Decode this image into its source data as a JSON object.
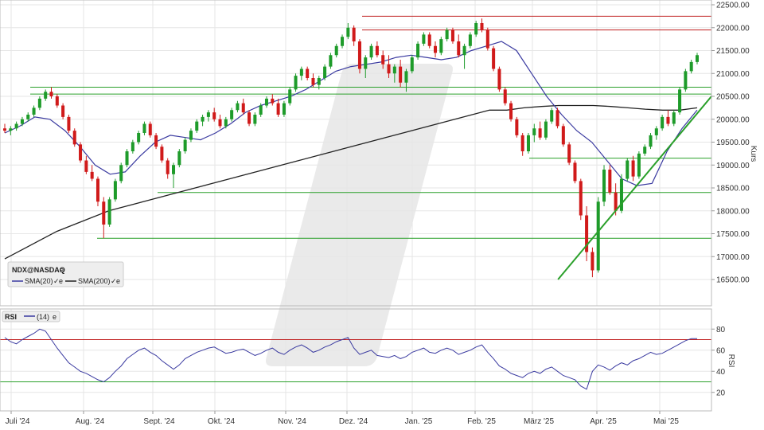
{
  "colors": {
    "up": "#1e9b2a",
    "down": "#d01a1a",
    "sma20": "#3a3aa0",
    "sma200": "#222222",
    "support": "#2aa02a",
    "resistance": "#c02020",
    "rsi": "#3a3aa0",
    "grid": "#e6e6e6",
    "watermark": "#d9d9d9"
  },
  "chart_data": [
    {
      "type": "candlestick",
      "symbol": "NDX@NASDAQ",
      "ylabel": "Kurs",
      "ylim": [
        16250,
        22500
      ],
      "yticks": [
        16500,
        17000,
        17500,
        18000,
        18500,
        19000,
        19500,
        20000,
        20500,
        21000,
        21500,
        22000,
        22500
      ],
      "ytick_labels": [
        "16500.00",
        "17000.00",
        "17500.00",
        "18000.00",
        "18500.00",
        "19000.00",
        "19500.00",
        "20000.00",
        "20500.00",
        "21000.00",
        "21500.00",
        "22000.00",
        "22500.00"
      ],
      "xticks": [
        "Juli '24",
        "Aug. '24",
        "Sept. '24",
        "Okt. '24",
        "Nov. '24",
        "Dez. '24",
        "Jan. '25",
        "Feb. '25",
        "März '25",
        "Apr. '25",
        "Mai '25"
      ],
      "legend": {
        "title": "NDX@NASDAQ",
        "items": [
          {
            "name": "SMA(20)",
            "color": "#3a3aa0"
          },
          {
            "name": "SMA(200)",
            "color": "#222222"
          }
        ]
      },
      "series": [
        {
          "name": "SMA(20)",
          "values": [
            19700,
            19850,
            20050,
            20000,
            19750,
            19400,
            19000,
            18800,
            18850,
            19200,
            19500,
            19650,
            19600,
            19550,
            19700,
            19900,
            20150,
            20300,
            20400,
            20500,
            20650,
            20850,
            21050,
            21150,
            21200,
            21250,
            21350,
            21400,
            21350,
            21300,
            21350,
            21500,
            21600,
            21700,
            21500,
            21000,
            20500,
            20100,
            19750,
            19500,
            19100,
            18700,
            18550,
            18600,
            19300,
            19800,
            20200
          ]
        },
        {
          "name": "SMA(200)",
          "values": [
            16950,
            17150,
            17350,
            17550,
            17700,
            17850,
            18000,
            18100,
            18200,
            18300,
            18400,
            18500,
            18600,
            18700,
            18800,
            18900,
            19000,
            19100,
            19200,
            19300,
            19400,
            19500,
            19600,
            19700,
            19800,
            19900,
            20000,
            20100,
            20200,
            20200,
            20250,
            20280,
            20300,
            20300,
            20300,
            20280,
            20250,
            20220,
            20200,
            20200,
            20250
          ]
        }
      ],
      "levels": [
        {
          "value": 22250,
          "color": "resistance"
        },
        {
          "value": 21950,
          "color": "resistance"
        },
        {
          "value": 20700,
          "color": "support"
        },
        {
          "value": 20550,
          "color": "support"
        },
        {
          "value": 19150,
          "color": "support"
        },
        {
          "value": 18400,
          "color": "support"
        },
        {
          "value": 17400,
          "color": "support"
        }
      ],
      "trendline": {
        "from": [
          0.799,
          16500
        ],
        "to": [
          1.0,
          20500
        ]
      },
      "candles": [
        [
          19800,
          19900,
          19700,
          19750
        ],
        [
          19750,
          19850,
          19650,
          19800
        ],
        [
          19800,
          19950,
          19750,
          19900
        ],
        [
          19900,
          20050,
          19850,
          20000
        ],
        [
          20000,
          20150,
          19950,
          20100
        ],
        [
          20100,
          20300,
          20050,
          20250
        ],
        [
          20250,
          20500,
          20200,
          20450
        ],
        [
          20450,
          20650,
          20400,
          20600
        ],
        [
          20600,
          20700,
          20450,
          20500
        ],
        [
          20500,
          20550,
          20250,
          20300
        ],
        [
          20300,
          20350,
          20000,
          20050
        ],
        [
          20050,
          20100,
          19700,
          19750
        ],
        [
          19750,
          19800,
          19400,
          19450
        ],
        [
          19450,
          19500,
          19050,
          19100
        ],
        [
          19100,
          19200,
          18800,
          18850
        ],
        [
          18850,
          19000,
          18650,
          18700
        ],
        [
          18700,
          18750,
          18100,
          18200
        ],
        [
          18200,
          18300,
          17400,
          17700
        ],
        [
          17700,
          18300,
          17650,
          18250
        ],
        [
          18250,
          18700,
          18200,
          18650
        ],
        [
          18650,
          19050,
          18600,
          19000
        ],
        [
          19000,
          19350,
          18950,
          19300
        ],
        [
          19300,
          19550,
          19250,
          19500
        ],
        [
          19500,
          19750,
          19450,
          19700
        ],
        [
          19700,
          19950,
          19650,
          19900
        ],
        [
          19900,
          19950,
          19600,
          19650
        ],
        [
          19650,
          19700,
          19350,
          19400
        ],
        [
          19400,
          19450,
          19050,
          19100
        ],
        [
          19100,
          19150,
          18700,
          18800
        ],
        [
          18800,
          19050,
          18500,
          19000
        ],
        [
          19000,
          19350,
          18950,
          19300
        ],
        [
          19300,
          19600,
          19250,
          19550
        ],
        [
          19550,
          19800,
          19500,
          19750
        ],
        [
          19750,
          20000,
          19700,
          19950
        ],
        [
          19950,
          20100,
          19850,
          20050
        ],
        [
          20050,
          20200,
          19950,
          20150
        ],
        [
          20150,
          20250,
          19950,
          20000
        ],
        [
          20000,
          20100,
          19800,
          19850
        ],
        [
          19850,
          20050,
          19800,
          20000
        ],
        [
          20000,
          20250,
          19950,
          20200
        ],
        [
          20200,
          20400,
          20150,
          20350
        ],
        [
          20350,
          20450,
          20100,
          20150
        ],
        [
          20150,
          20200,
          19850,
          19900
        ],
        [
          19900,
          20150,
          19850,
          20100
        ],
        [
          20100,
          20350,
          20050,
          20300
        ],
        [
          20300,
          20500,
          20250,
          20450
        ],
        [
          20450,
          20550,
          20300,
          20350
        ],
        [
          20350,
          20450,
          20050,
          20100
        ],
        [
          20100,
          20400,
          20050,
          20350
        ],
        [
          20350,
          20700,
          20300,
          20650
        ],
        [
          20650,
          21000,
          20600,
          20950
        ],
        [
          20950,
          21150,
          20850,
          21100
        ],
        [
          21100,
          21150,
          20850,
          20900
        ],
        [
          20900,
          21000,
          20700,
          20750
        ],
        [
          20750,
          20950,
          20650,
          20900
        ],
        [
          20900,
          21200,
          20850,
          21150
        ],
        [
          21150,
          21450,
          21100,
          21400
        ],
        [
          21400,
          21650,
          21350,
          21600
        ],
        [
          21600,
          21850,
          21550,
          21800
        ],
        [
          21800,
          22100,
          21750,
          22000
        ],
        [
          22000,
          22050,
          21600,
          21700
        ],
        [
          21700,
          21750,
          21000,
          21100
        ],
        [
          21100,
          21400,
          20900,
          21350
        ],
        [
          21350,
          21650,
          21300,
          21600
        ],
        [
          21600,
          21700,
          21350,
          21400
        ],
        [
          21400,
          21500,
          21100,
          21200
        ],
        [
          21200,
          21400,
          20900,
          21000
        ],
        [
          21000,
          21200,
          20800,
          21150
        ],
        [
          21150,
          21300,
          20700,
          20800
        ],
        [
          20800,
          21100,
          20600,
          21050
        ],
        [
          21050,
          21400,
          21000,
          21350
        ],
        [
          21350,
          21700,
          21300,
          21650
        ],
        [
          21650,
          21900,
          21600,
          21850
        ],
        [
          21850,
          21900,
          21550,
          21600
        ],
        [
          21600,
          21700,
          21350,
          21450
        ],
        [
          21450,
          21800,
          21400,
          21750
        ],
        [
          21750,
          22000,
          21700,
          21950
        ],
        [
          21950,
          22000,
          21650,
          21700
        ],
        [
          21700,
          21850,
          21350,
          21400
        ],
        [
          21400,
          21650,
          21100,
          21600
        ],
        [
          21600,
          21900,
          21550,
          21850
        ],
        [
          21850,
          22150,
          21800,
          22100
        ],
        [
          22100,
          22200,
          21900,
          21950
        ],
        [
          21950,
          22000,
          21500,
          21550
        ],
        [
          21550,
          21600,
          21050,
          21100
        ],
        [
          21100,
          21150,
          20600,
          20650
        ],
        [
          20650,
          20700,
          20300,
          20350
        ],
        [
          20350,
          20400,
          19950,
          20000
        ],
        [
          20000,
          20050,
          19600,
          19650
        ],
        [
          19650,
          19700,
          19200,
          19300
        ],
        [
          19300,
          19700,
          19250,
          19650
        ],
        [
          19650,
          19900,
          19500,
          19800
        ],
        [
          19800,
          19950,
          19550,
          19600
        ],
        [
          19600,
          20000,
          19550,
          19950
        ],
        [
          19950,
          20250,
          19900,
          20200
        ],
        [
          20200,
          20250,
          19800,
          19850
        ],
        [
          19850,
          19900,
          19400,
          19450
        ],
        [
          19450,
          19500,
          19000,
          19050
        ],
        [
          19050,
          19100,
          18600,
          18650
        ],
        [
          18650,
          18700,
          17800,
          17900
        ],
        [
          17900,
          18100,
          16900,
          17100
        ],
        [
          17100,
          17200,
          16550,
          16700
        ],
        [
          16700,
          18300,
          16650,
          18200
        ],
        [
          18200,
          19000,
          18100,
          18900
        ],
        [
          18900,
          19000,
          18350,
          18400
        ],
        [
          18400,
          18600,
          17900,
          18000
        ],
        [
          18000,
          18800,
          17950,
          18700
        ],
        [
          18700,
          19150,
          18650,
          19100
        ],
        [
          19100,
          19200,
          18650,
          18750
        ],
        [
          18750,
          19300,
          18700,
          19250
        ],
        [
          19250,
          19450,
          19200,
          19400
        ],
        [
          19400,
          19700,
          19350,
          19650
        ],
        [
          19650,
          19850,
          19550,
          19800
        ],
        [
          19800,
          20100,
          19750,
          20050
        ],
        [
          20050,
          20200,
          19850,
          19900
        ],
        [
          19900,
          20200,
          19850,
          20150
        ],
        [
          20150,
          20700,
          20100,
          20650
        ],
        [
          20650,
          21100,
          20600,
          21050
        ],
        [
          21050,
          21300,
          21000,
          21250
        ],
        [
          21250,
          21450,
          21200,
          21400
        ]
      ]
    },
    {
      "type": "line",
      "name": "RSI",
      "legend": {
        "title": "RSI",
        "items": [
          {
            "name": "(14)",
            "color": "#3a3aa0"
          }
        ]
      },
      "ylabel": "RSI",
      "ylim": [
        10,
        90
      ],
      "yticks": [
        20,
        40,
        60,
        80
      ],
      "levels": [
        {
          "value": 70,
          "color": "resistance"
        },
        {
          "value": 30,
          "color": "support"
        }
      ],
      "values": [
        72,
        68,
        66,
        70,
        73,
        76,
        80,
        78,
        70,
        62,
        55,
        48,
        44,
        40,
        38,
        35,
        32,
        30,
        34,
        40,
        45,
        52,
        56,
        60,
        62,
        58,
        55,
        50,
        46,
        42,
        46,
        52,
        55,
        58,
        60,
        62,
        63,
        60,
        57,
        58,
        60,
        61,
        58,
        55,
        57,
        60,
        62,
        58,
        56,
        60,
        63,
        65,
        62,
        58,
        60,
        63,
        65,
        68,
        70,
        72,
        62,
        56,
        58,
        60,
        55,
        54,
        53,
        55,
        52,
        54,
        58,
        60,
        62,
        58,
        57,
        60,
        62,
        60,
        56,
        58,
        60,
        63,
        65,
        58,
        52,
        45,
        42,
        38,
        36,
        34,
        38,
        40,
        38,
        42,
        44,
        40,
        36,
        34,
        32,
        26,
        23,
        40,
        46,
        44,
        41,
        45,
        48,
        46,
        50,
        52,
        55,
        58,
        56,
        57,
        60,
        63,
        66,
        69,
        71,
        71
      ]
    }
  ]
}
